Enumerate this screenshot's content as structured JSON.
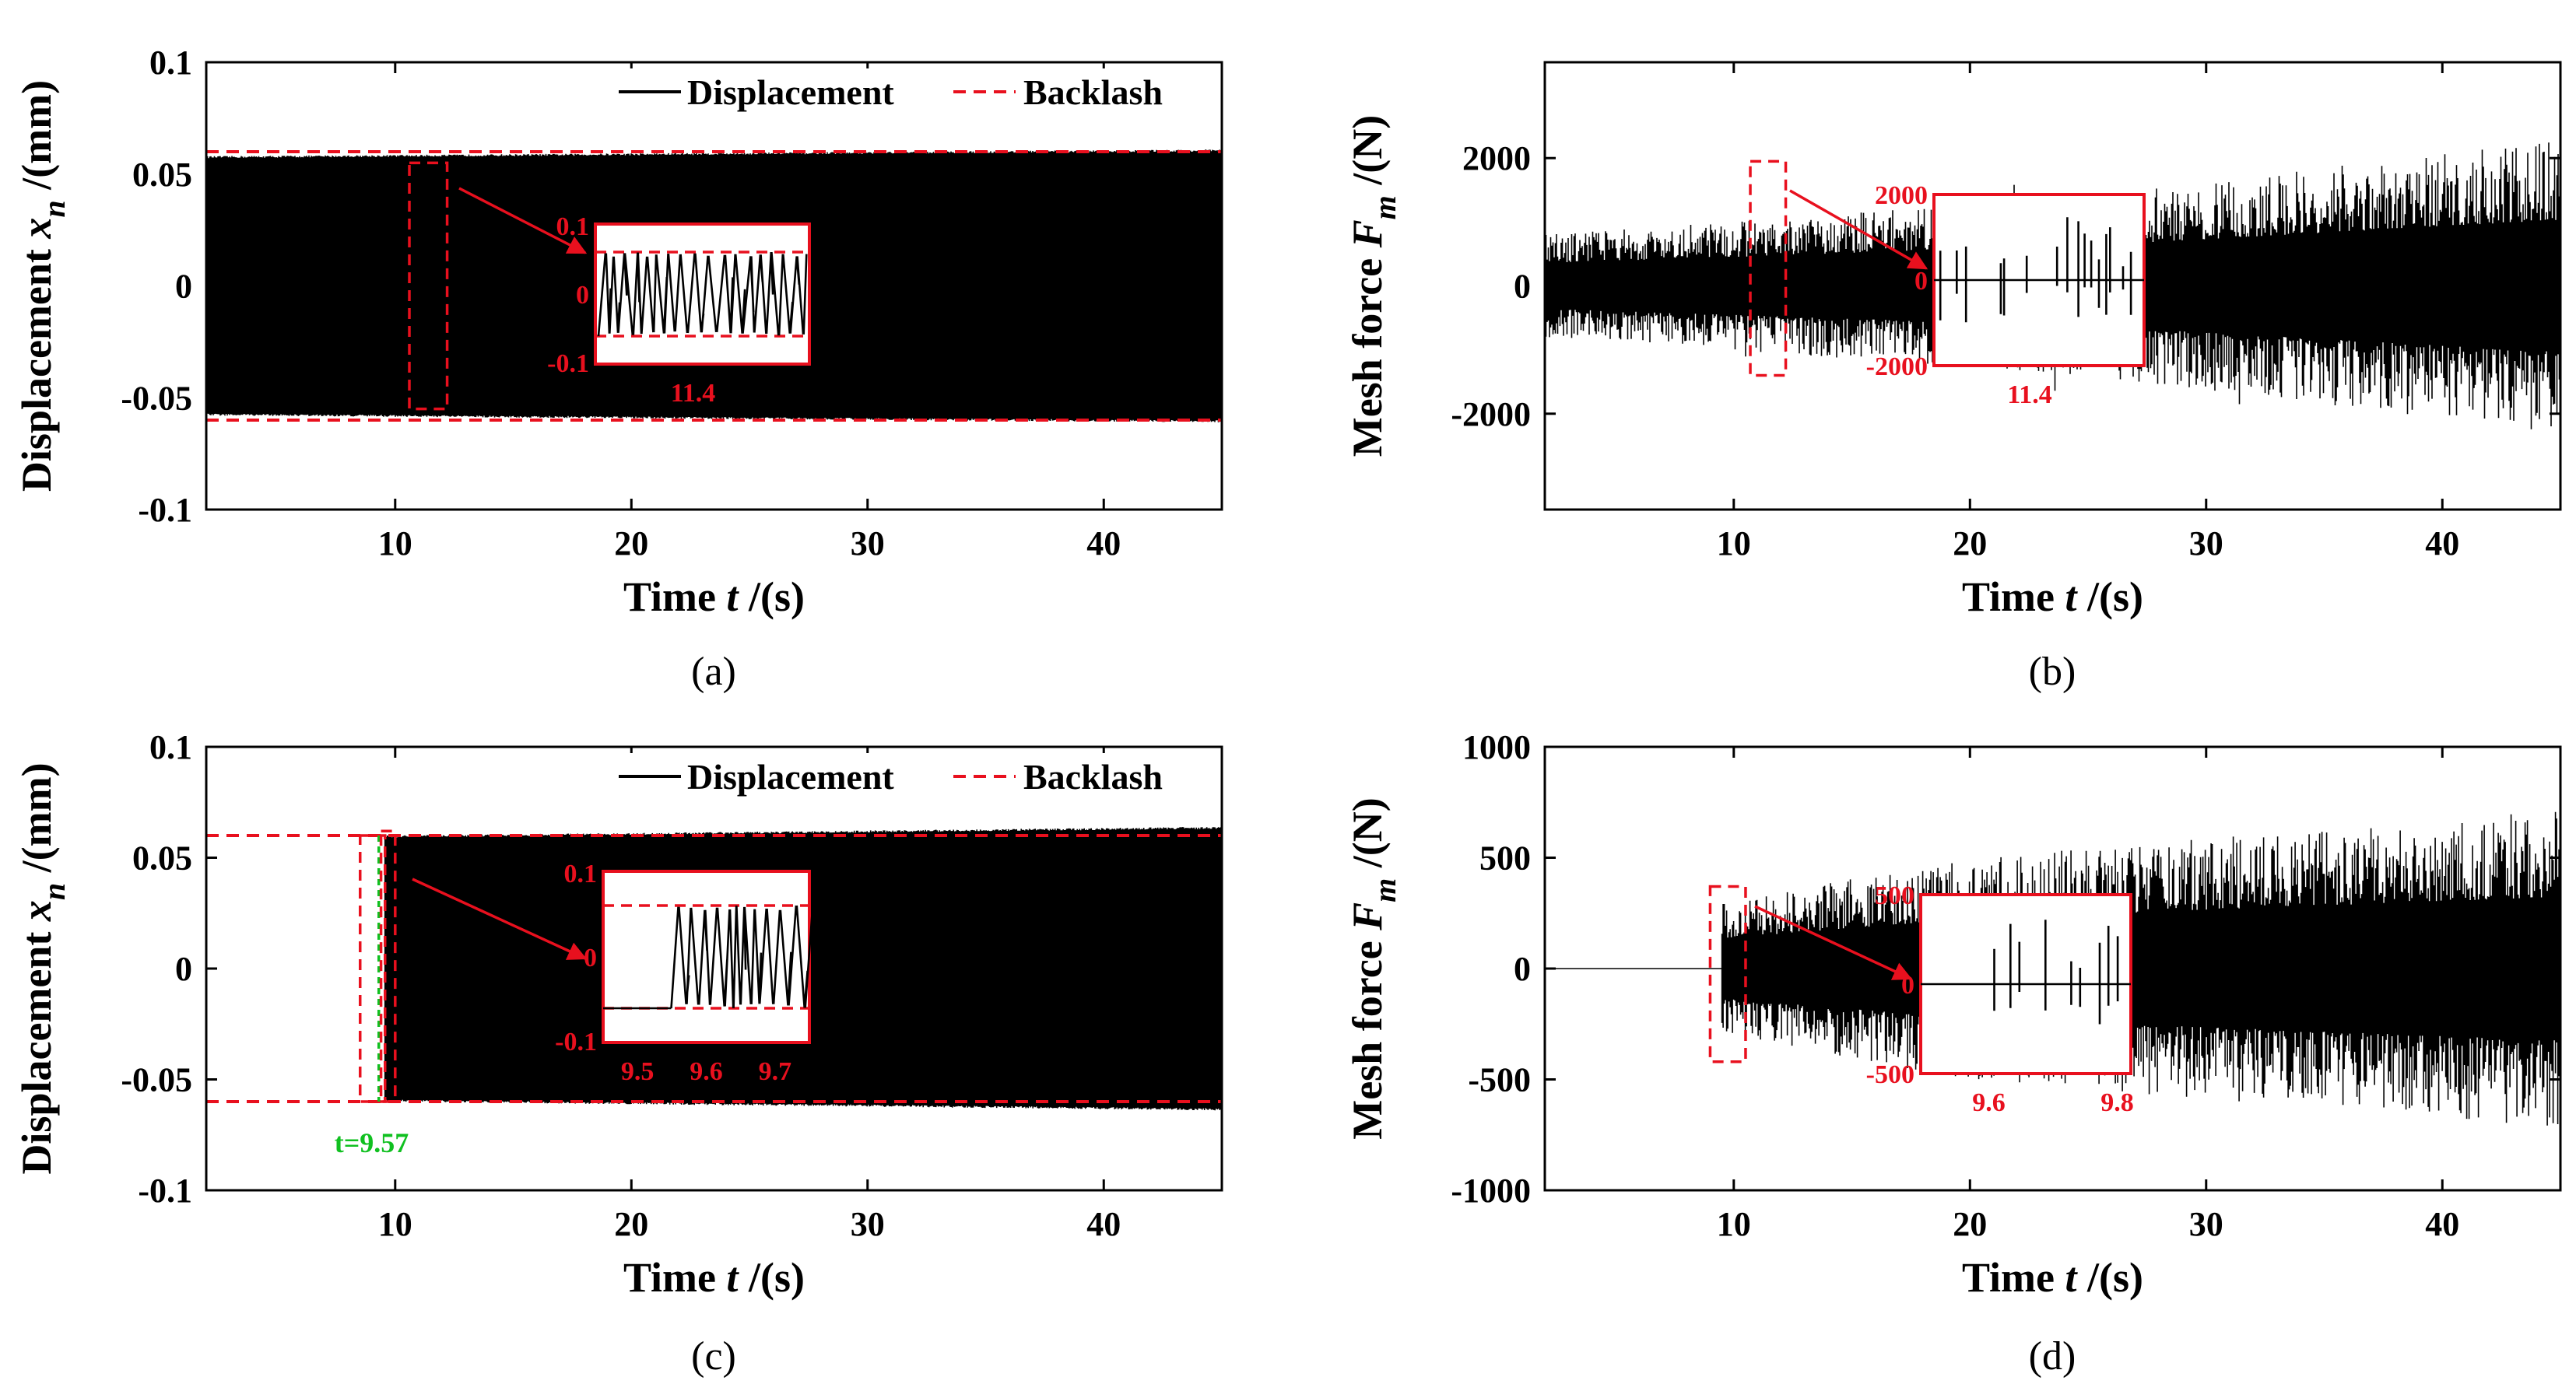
{
  "chart_data": [
    {
      "id": "a",
      "type": "line",
      "caption": "(a)",
      "xlabel": "Time t /(s)",
      "ylabel": "Displacement x_n /(mm)",
      "xlim": [
        2,
        45
      ],
      "ylim": [
        -0.1,
        0.1
      ],
      "xticks": [
        10,
        20,
        30,
        40
      ],
      "xtick_labels": [
        "10",
        "20",
        "30",
        "40"
      ],
      "yticks": [
        -0.1,
        -0.05,
        0,
        0.05,
        0.1
      ],
      "ytick_labels": [
        "-0.1",
        "-0.05",
        "0",
        "0.05",
        "0.1"
      ],
      "legend": [
        "Displacement",
        "Backlash"
      ],
      "legend_position": "top-right",
      "series": [
        {
          "name": "Displacement",
          "style": "solid",
          "color": "#000000",
          "envelope": [
            [
              2,
              0.058
            ],
            [
              45,
              0.061
            ]
          ],
          "onset": 2
        },
        {
          "name": "Backlash",
          "style": "dashed",
          "color": "#e8101e",
          "value": 0.06,
          "range": [
            2,
            45
          ]
        }
      ],
      "zoom": {
        "window_x": [
          10.6,
          12.2
        ],
        "window_y": [
          -0.055,
          0.055
        ],
        "ytick_labels": [
          "0.1",
          "0",
          "-0.1"
        ],
        "xtick_labels": [
          "11.4"
        ]
      }
    },
    {
      "id": "b",
      "type": "line",
      "caption": "(b)",
      "xlabel": "Time t /(s)",
      "ylabel": "Mesh force F_m /(N)",
      "xlim": [
        2,
        45
      ],
      "ylim": [
        -3500,
        3500
      ],
      "xticks": [
        10,
        20,
        30,
        40
      ],
      "xtick_labels": [
        "10",
        "20",
        "30",
        "40"
      ],
      "yticks": [
        -2000,
        0,
        2000
      ],
      "ytick_labels": [
        "-2000",
        "0",
        "2000"
      ],
      "series": [
        {
          "name": "Mesh force",
          "style": "solid",
          "color": "#000000",
          "envelope": [
            [
              2,
              800
            ],
            [
              25,
              1400
            ],
            [
              45,
              2300
            ]
          ],
          "onset": 2
        }
      ],
      "zoom": {
        "window_x": [
          10.7,
          12.2
        ],
        "window_y": [
          -1400,
          1950
        ],
        "ytick_labels": [
          "2000",
          "0",
          "-2000"
        ],
        "xtick_labels": [
          "11.4"
        ]
      }
    },
    {
      "id": "c",
      "type": "line",
      "caption": "(c)",
      "xlabel": "Time t /(s)",
      "ylabel": "Displacement x_n /(mm)",
      "xlim": [
        2,
        45
      ],
      "ylim": [
        -0.1,
        0.1
      ],
      "xticks": [
        10,
        20,
        30,
        40
      ],
      "xtick_labels": [
        "10",
        "20",
        "30",
        "40"
      ],
      "yticks": [
        -0.1,
        -0.05,
        0,
        0.05,
        0.1
      ],
      "ytick_labels": [
        "-0.1",
        "-0.05",
        "0",
        "0.05",
        "0.1"
      ],
      "legend": [
        "Displacement",
        "Backlash"
      ],
      "legend_position": "top-right",
      "series": [
        {
          "name": "Displacement",
          "style": "solid",
          "color": "#000000",
          "envelope": [
            [
              9.57,
              0.06
            ],
            [
              45,
              0.064
            ]
          ],
          "onset": 9.57
        },
        {
          "name": "Backlash",
          "style": "dashed",
          "color": "#e8101e",
          "value": 0.06,
          "range": [
            2,
            45
          ]
        }
      ],
      "marker": {
        "x": 9.57,
        "label": "t=9.57",
        "color": "#10c020"
      },
      "zoom": {
        "window_x": [
          9.4,
          10.0
        ],
        "window_y": [
          -0.06,
          0.062
        ],
        "ytick_labels": [
          "0.1",
          "0",
          "-0.1"
        ],
        "xtick_labels": [
          "9.5",
          "9.6",
          "9.7"
        ]
      }
    },
    {
      "id": "d",
      "type": "line",
      "caption": "(d)",
      "xlabel": "Time t /(s)",
      "ylabel": "Mesh force F_m /(N)",
      "xlim": [
        2,
        45
      ],
      "ylim": [
        -1000,
        1000
      ],
      "xticks": [
        10,
        20,
        30,
        40
      ],
      "xtick_labels": [
        "10",
        "20",
        "30",
        "40"
      ],
      "yticks": [
        -1000,
        -500,
        0,
        500,
        1000
      ],
      "ytick_labels": [
        "-1000",
        "-500",
        "0",
        "500",
        "1000"
      ],
      "series": [
        {
          "name": "Mesh force",
          "style": "solid",
          "color": "#000000",
          "envelope": [
            [
              9.5,
              300
            ],
            [
              20,
              500
            ],
            [
              45,
              720
            ]
          ],
          "onset": 9.5
        }
      ],
      "zoom": {
        "window_x": [
          9.0,
          10.5
        ],
        "window_y": [
          -420,
          370
        ],
        "ytick_labels": [
          "500",
          "0",
          "-500"
        ],
        "xtick_labels": [
          "9.6",
          "9.8"
        ]
      }
    }
  ]
}
